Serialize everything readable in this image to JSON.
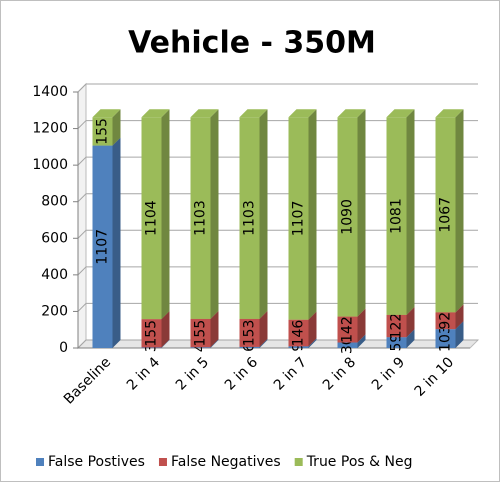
{
  "chart_data": {
    "type": "bar",
    "stacked": true,
    "title": "Vehicle - 350M",
    "categories": [
      "Baseline",
      "2 in 4",
      "2 in 5",
      "2 in 6",
      "2 in 7",
      "2 in 8",
      "2 in 9",
      "2 in 10"
    ],
    "series": [
      {
        "name": "False Postives",
        "color": "#4f81bd",
        "values": [
          1107,
          3,
          4,
          6,
          9,
          30,
          59,
          103
        ]
      },
      {
        "name": "False Negatives",
        "color": "#c0504d",
        "values": [
          null,
          155,
          155,
          153,
          146,
          142,
          122,
          92
        ]
      },
      {
        "name": "True Pos & Neg",
        "color": "#9bbb59",
        "values": [
          155,
          1104,
          1103,
          1103,
          1107,
          1090,
          1081,
          1067
        ]
      }
    ],
    "ylim": [
      0,
      1400
    ],
    "yticks": [
      0,
      200,
      400,
      600,
      800,
      1000,
      1200,
      1400
    ],
    "grid": true,
    "legend": "bottom"
  }
}
